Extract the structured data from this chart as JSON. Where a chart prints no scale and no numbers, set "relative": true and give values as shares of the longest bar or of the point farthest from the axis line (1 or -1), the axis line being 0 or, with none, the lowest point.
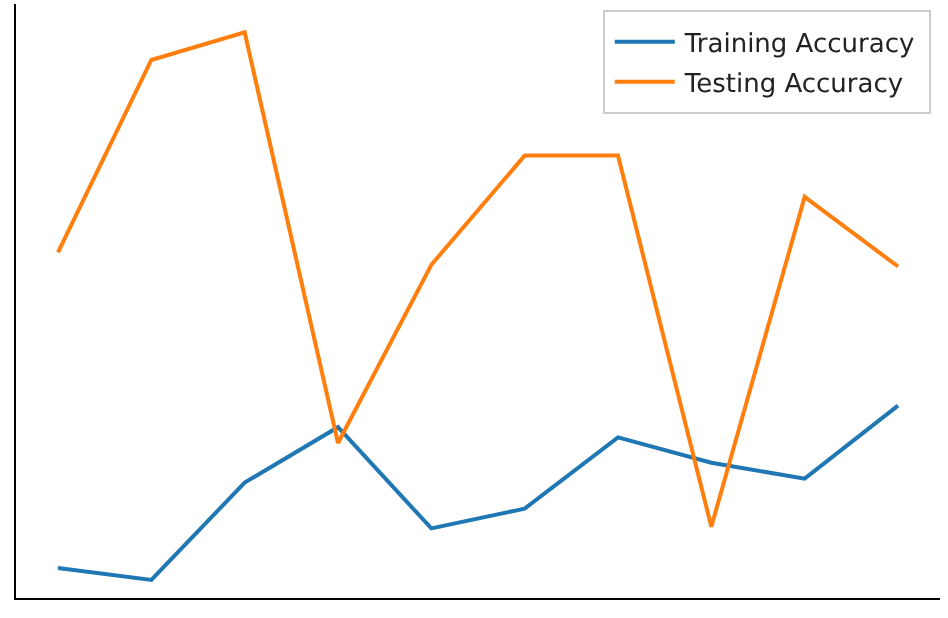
{
  "chart_data": {
    "type": "line",
    "relative": true,
    "categories": [
      null,
      null,
      null,
      null,
      null,
      null,
      null,
      null,
      null,
      null
    ],
    "series": [
      {
        "name": "Training Accuracy",
        "color": "#1f77b4",
        "values": [
          0.053,
          0.032,
          0.204,
          0.302,
          0.123,
          0.158,
          0.284,
          0.239,
          0.211,
          0.34
        ]
      },
      {
        "name": "Testing Accuracy",
        "color": "#ff7f0e",
        "values": [
          0.611,
          0.951,
          1,
          0.274,
          0.589,
          0.782,
          0.782,
          0.126,
          0.709,
          0.586
        ]
      }
    ],
    "legend": "top right",
    "marker": "none",
    "line_style": "solid"
  }
}
